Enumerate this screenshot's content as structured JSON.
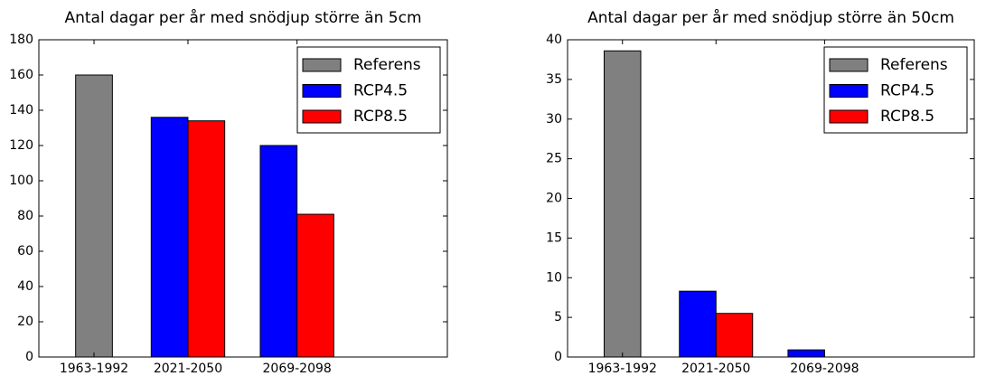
{
  "chart_data": [
    {
      "type": "bar",
      "title": "Antal dagar per år med snödjup större än 5cm",
      "categories": [
        "1963-1992",
        "2021-2050",
        "2069-2098"
      ],
      "series": [
        {
          "name": "Referens",
          "color": "#808080",
          "values": [
            160,
            null,
            null
          ]
        },
        {
          "name": "RCP4.5",
          "color": "#0000ff",
          "values": [
            null,
            136,
            120
          ]
        },
        {
          "name": "RCP8.5",
          "color": "#ff0000",
          "values": [
            null,
            134,
            81
          ]
        }
      ],
      "ylim": [
        0,
        180
      ],
      "yticks": [
        0,
        20,
        40,
        60,
        80,
        100,
        120,
        140,
        160,
        180
      ],
      "legend": "upper right"
    },
    {
      "type": "bar",
      "title": "Antal dagar per år med snödjup större än 50cm",
      "categories": [
        "1963-1992",
        "2021-2050",
        "2069-2098"
      ],
      "series": [
        {
          "name": "Referens",
          "color": "#808080",
          "values": [
            38.6,
            null,
            null
          ]
        },
        {
          "name": "RCP4.5",
          "color": "#0000ff",
          "values": [
            null,
            8.3,
            0.9
          ]
        },
        {
          "name": "RCP8.5",
          "color": "#ff0000",
          "values": [
            null,
            5.5,
            0
          ]
        }
      ],
      "ylim": [
        0,
        40
      ],
      "yticks": [
        0,
        5,
        10,
        15,
        20,
        25,
        30,
        35,
        40
      ],
      "legend": "upper right"
    }
  ]
}
